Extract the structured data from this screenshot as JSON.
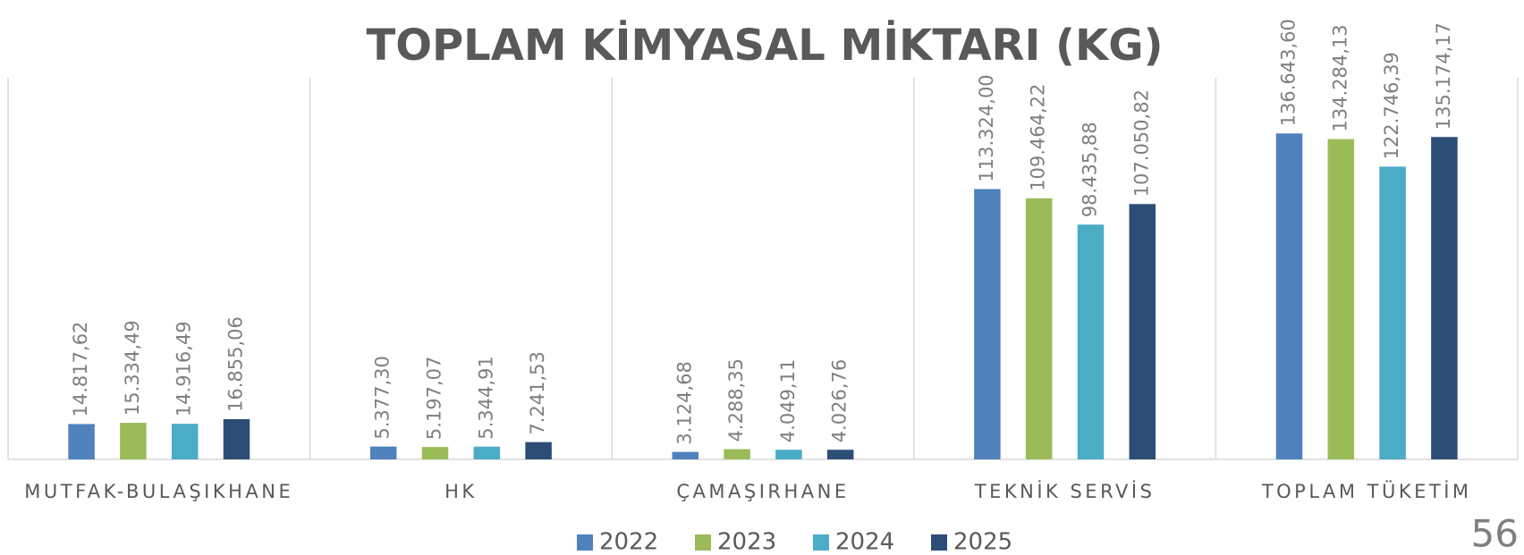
{
  "chart_data": {
    "type": "bar",
    "title": "TOPLAM KİMYASAL MİKTARI (KG)",
    "categories": [
      "MUTFAK-BULAŞIKHANE",
      "HK",
      "ÇAMAŞIRHANE",
      "TEKNİK SERVİS",
      "TOPLAM TÜKETİM"
    ],
    "series": [
      {
        "name": "2022",
        "color": "#4f81bd",
        "values": [
          14817.62,
          5377.3,
          3124.68,
          113324.0,
          136643.6
        ],
        "value_labels": [
          "14.817,62",
          "5.377,30",
          "3.124,68",
          "113.324,00",
          "136.643,60"
        ]
      },
      {
        "name": "2023",
        "color": "#9bbb59",
        "values": [
          15334.49,
          5197.07,
          4288.35,
          109464.22,
          134284.13
        ],
        "value_labels": [
          "15.334,49",
          "5.197,07",
          "4.288,35",
          "109.464,22",
          "134.284,13"
        ]
      },
      {
        "name": "2024",
        "color": "#4bacc6",
        "values": [
          14916.49,
          5344.91,
          4049.11,
          98435.88,
          122746.39
        ],
        "value_labels": [
          "14.916,49",
          "5.344,91",
          "4.049,11",
          "98.435,88",
          "122.746,39"
        ]
      },
      {
        "name": "2025",
        "color": "#2c4d75",
        "values": [
          16855.06,
          7241.53,
          4026.76,
          107050.82,
          135174.17
        ],
        "value_labels": [
          "16.855,06",
          "7.241,53",
          "4.026,76",
          "107.050,82",
          "135.174,17"
        ]
      }
    ],
    "ylim": [
      0,
      160000
    ],
    "legend": "bottom"
  },
  "page_number": "56"
}
